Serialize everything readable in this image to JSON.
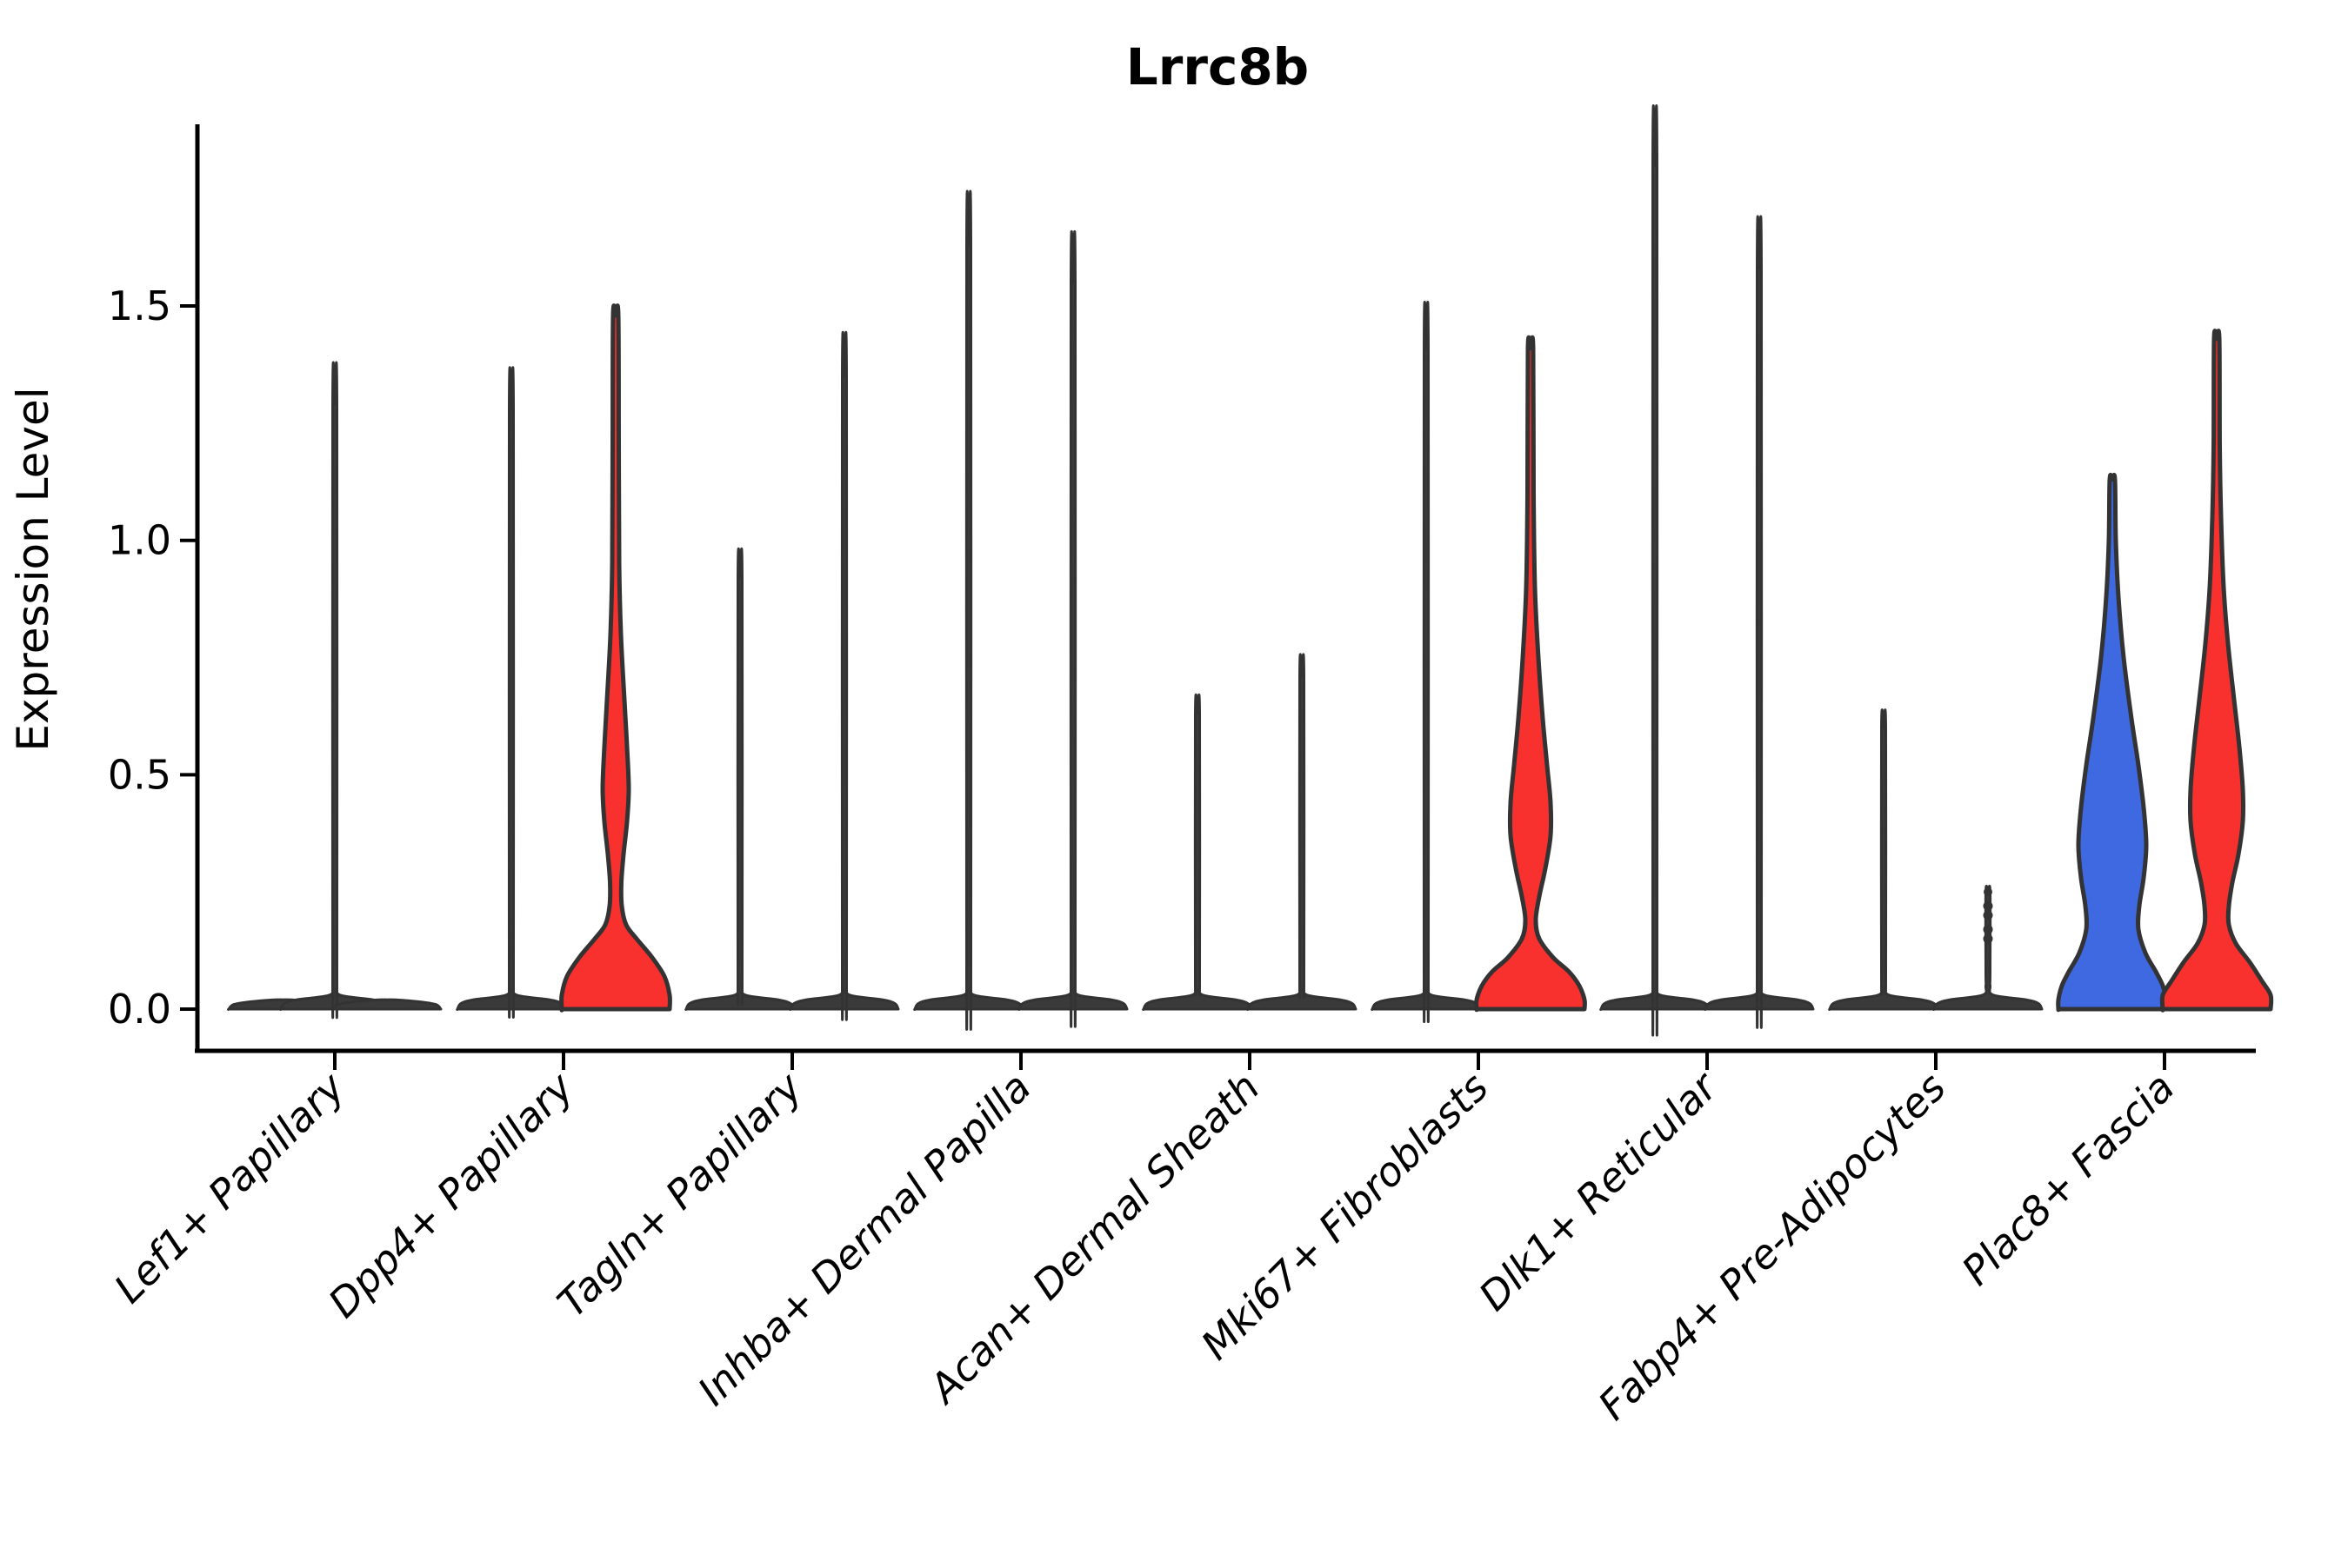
{
  "title": "Lrrc8b",
  "ylabel": "Expression Level",
  "colors": {
    "red": "#f8312f",
    "blue": "#3e69e1",
    "line": "#333333",
    "dark_fill": "#3a3a3a",
    "text": "#000000"
  },
  "chart_data": {
    "type": "violin",
    "title": "Lrrc8b",
    "xlabel": "",
    "ylabel": "Expression Level",
    "ylim": [
      -0.09,
      1.89
    ],
    "yticks": [
      "0.0",
      "0.5",
      "1.0",
      "1.5"
    ],
    "ytick_values": [
      0.0,
      0.5,
      1.0,
      1.5
    ],
    "grid": false,
    "legend": "none",
    "categories": [
      "Lef1+ Papillary",
      "Dpp4+ Papillary",
      "Tagln+ Papillary",
      "Inhba+ Dermal Papilla",
      "Acan+ Dermal Sheath",
      "Mki67+ Fibroblasts",
      "Dlk1+ Reticular",
      "Fabp4+ Pre-Adipocytes",
      "Plac8+ Fascia"
    ],
    "series_note": "two violins per category (left/right); most are near-zero spikes, filled violins indicate broader expression",
    "series": [
      {
        "name": "left-violin-max",
        "values": [
          1.29,
          1.28,
          0.92,
          1.63,
          0.63,
          1.41,
          1.8,
          0.6,
          1.13
        ]
      },
      {
        "name": "right-violin-max",
        "values": [
          1.29,
          1.48,
          1.35,
          1.55,
          0.71,
          1.41,
          1.58,
          0.25,
          1.43
        ]
      }
    ],
    "marks": [
      {
        "category": "Lef1+ Papillary",
        "violins": [
          {
            "offset": -60,
            "style": "flat"
          },
          {
            "offset": 0,
            "style": "thin",
            "max": 1.29
          },
          {
            "offset": 60,
            "style": "flat"
          }
        ]
      },
      {
        "category": "Dpp4+ Papillary",
        "violins": [
          {
            "offset": -60,
            "style": "thin",
            "max": 1.28
          },
          {
            "offset": 60,
            "style": "filled",
            "fill": "red",
            "max": 1.48,
            "profile": [
              [
                1.48,
                3
              ],
              [
                1.2,
                3.5
              ],
              [
                0.95,
                4
              ],
              [
                0.8,
                6
              ],
              [
                0.66,
                10
              ],
              [
                0.56,
                13
              ],
              [
                0.47,
                15
              ],
              [
                0.4,
                13
              ],
              [
                0.33,
                9
              ],
              [
                0.27,
                6.5
              ],
              [
                0.22,
                7
              ],
              [
                0.18,
                12
              ],
              [
                0.15,
                24
              ],
              [
                0.11,
                42
              ],
              [
                0.07,
                56
              ],
              [
                0.03,
                62
              ],
              [
                0,
                62
              ]
            ]
          }
        ]
      },
      {
        "category": "Tagln+ Papillary",
        "violins": [
          {
            "offset": -60,
            "style": "thin",
            "max": 0.92
          },
          {
            "offset": 60,
            "style": "thin",
            "max": 1.35
          }
        ]
      },
      {
        "category": "Inhba+ Dermal Papilla",
        "violins": [
          {
            "offset": -60,
            "style": "thin",
            "max": 1.63
          },
          {
            "offset": 60,
            "style": "thin",
            "max": 1.55
          }
        ]
      },
      {
        "category": "Acan+ Dermal Sheath",
        "violins": [
          {
            "offset": -60,
            "style": "thin",
            "max": 0.63
          },
          {
            "offset": 60,
            "style": "thin",
            "max": 0.71
          }
        ]
      },
      {
        "category": "Mki67+ Fibroblasts",
        "violins": [
          {
            "offset": -60,
            "style": "thin",
            "max": 1.41
          },
          {
            "offset": 60,
            "style": "filled",
            "fill": "red",
            "max": 1.41,
            "profile": [
              [
                1.41,
                3
              ],
              [
                1.1,
                3.5
              ],
              [
                0.9,
                5
              ],
              [
                0.75,
                9
              ],
              [
                0.62,
                14
              ],
              [
                0.52,
                19
              ],
              [
                0.44,
                23
              ],
              [
                0.37,
                23
              ],
              [
                0.3,
                17
              ],
              [
                0.24,
                10
              ],
              [
                0.19,
                6
              ],
              [
                0.15,
                10
              ],
              [
                0.11,
                26
              ],
              [
                0.08,
                44
              ],
              [
                0.05,
                56
              ],
              [
                0.02,
                62
              ],
              [
                0,
                62
              ]
            ]
          }
        ]
      },
      {
        "category": "Dlk1+ Reticular",
        "violins": [
          {
            "offset": -60,
            "style": "thin",
            "max": 1.8
          },
          {
            "offset": 60,
            "style": "thin",
            "max": 1.58
          }
        ]
      },
      {
        "category": "Fabp4+ Pre-Adipocytes",
        "violins": [
          {
            "offset": -60,
            "style": "thin",
            "max": 0.6
          },
          {
            "offset": 60,
            "style": "beaded",
            "max": 0.25,
            "beads": [
              0.22,
              0.2,
              0.17,
              0.15
            ]
          }
        ]
      },
      {
        "category": "Plac8+ Fascia",
        "violins": [
          {
            "offset": -60,
            "style": "filled",
            "fill": "blue",
            "max": 1.13,
            "profile": [
              [
                1.13,
                3
              ],
              [
                1.0,
                4
              ],
              [
                0.88,
                7
              ],
              [
                0.75,
                13
              ],
              [
                0.62,
                22
              ],
              [
                0.52,
                30
              ],
              [
                0.43,
                36
              ],
              [
                0.35,
                39
              ],
              [
                0.28,
                36
              ],
              [
                0.22,
                31
              ],
              [
                0.17,
                30
              ],
              [
                0.12,
                38
              ],
              [
                0.08,
                50
              ],
              [
                0.05,
                58
              ],
              [
                0.02,
                62
              ],
              [
                0,
                62
              ]
            ]
          },
          {
            "offset": 60,
            "style": "filled",
            "fill": "red",
            "max": 1.43,
            "profile": [
              [
                1.43,
                3
              ],
              [
                1.2,
                3.5
              ],
              [
                1.05,
                5
              ],
              [
                0.9,
                8
              ],
              [
                0.78,
                13
              ],
              [
                0.66,
                20
              ],
              [
                0.56,
                26
              ],
              [
                0.47,
                30
              ],
              [
                0.4,
                30
              ],
              [
                0.33,
                25
              ],
              [
                0.27,
                18
              ],
              [
                0.22,
                14
              ],
              [
                0.18,
                14
              ],
              [
                0.14,
                22
              ],
              [
                0.1,
                38
              ],
              [
                0.06,
                52
              ],
              [
                0.03,
                62
              ],
              [
                0,
                62
              ]
            ]
          }
        ]
      }
    ]
  }
}
